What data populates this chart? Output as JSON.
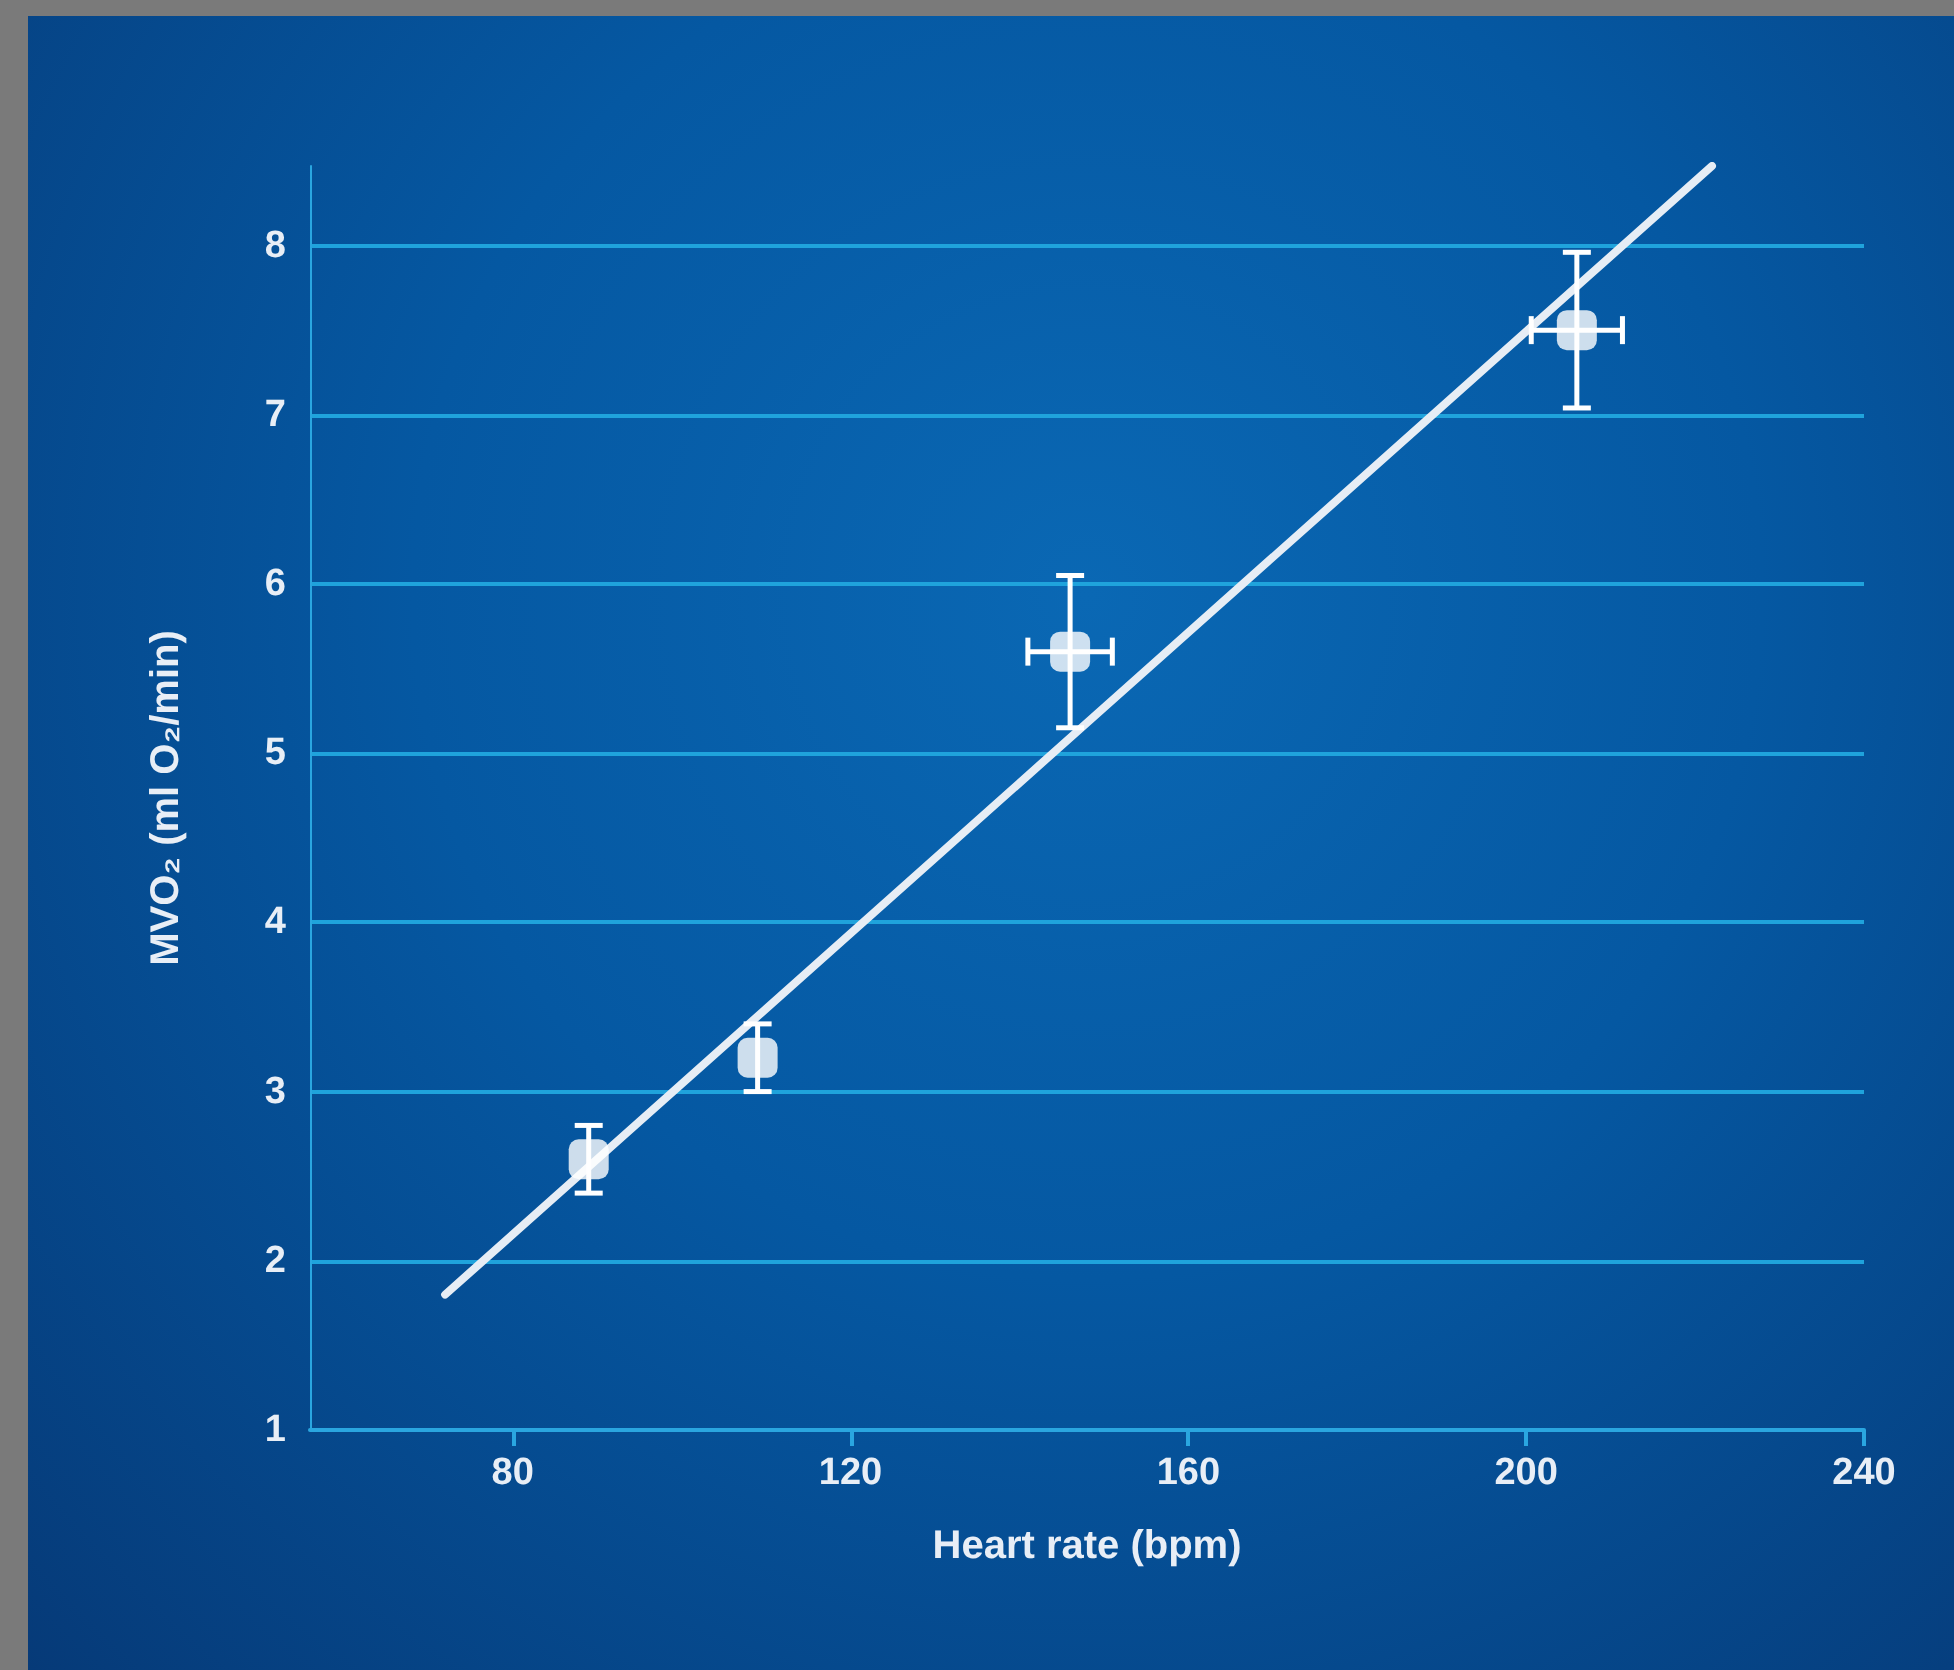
{
  "chart_data": {
    "type": "scatter",
    "xlabel": "Heart rate (bpm)",
    "ylabel": "MVO₂ (ml O₂/min)",
    "xlim": [
      56,
      240
    ],
    "xticks": [
      80,
      120,
      160,
      200,
      240
    ],
    "ylim": [
      1,
      8.47
    ],
    "yticks": [
      1,
      2,
      3,
      4,
      5,
      6,
      7,
      8
    ],
    "grid": "y",
    "marker": "square",
    "series": [
      {
        "color": "#ffffff",
        "x": [
          89,
          109,
          146,
          206
        ],
        "values": [
          2.6,
          3.2,
          5.6,
          7.5
        ],
        "errors": [
          0.2,
          0.2,
          0.45,
          0.46
        ],
        "xerrors": [
          null,
          null,
          5,
          5.4
        ]
      },
      {
        "type": "line",
        "color": "#e6edf5",
        "x": [
          72,
          222
        ],
        "values": [
          1.8,
          8.47
        ],
        "line_style": "solid",
        "marker": "none"
      }
    ]
  }
}
